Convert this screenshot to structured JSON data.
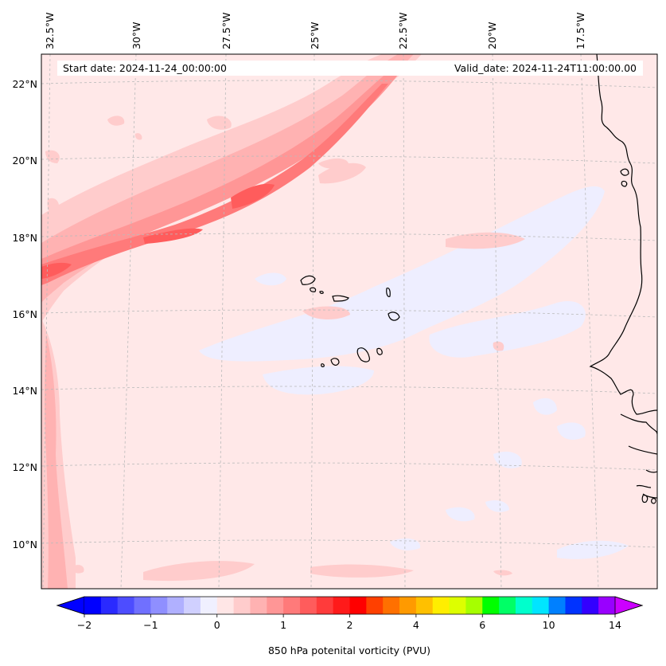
{
  "header": {
    "start_date": "Start date: 2024-11-24_00:00:00",
    "valid_date": "Valid_date: 2024-11-24T11:00:00.00"
  },
  "map": {
    "lon_labels": [
      "32.5°W",
      "30°W",
      "27.5°W",
      "25°W",
      "22.5°W",
      "20°W",
      "17.5°W"
    ],
    "lat_labels": [
      "22°N",
      "20°N",
      "18°N",
      "16°N",
      "14°N",
      "12°N",
      "10°N"
    ],
    "gridlines": "dashed"
  },
  "colorbar": {
    "label": "850 hPa potenital vorticity (PVU)",
    "tick_labels": [
      "−2",
      "−1",
      "0",
      "1",
      "2",
      "4",
      "6",
      "10",
      "14"
    ],
    "colors": [
      "#0000ff",
      "#2a2aff",
      "#4d4dff",
      "#7070ff",
      "#8f8fff",
      "#b0b0ff",
      "#d0d0ff",
      "#f0f0ff",
      "#ffe6e6",
      "#ffcccc",
      "#ffb2b2",
      "#ff9696",
      "#ff7a7a",
      "#ff5c5c",
      "#ff3b3b",
      "#ff1a1a",
      "#ff0000",
      "#ff4000",
      "#ff7000",
      "#ff9a00",
      "#ffc000",
      "#ffee00",
      "#ddff00",
      "#a6ff00",
      "#00ff00",
      "#00ff66",
      "#00ffcc",
      "#00e5ff",
      "#0080ff",
      "#0033ff",
      "#3300ff",
      "#9900ff"
    ],
    "extend_min_color": "#0000ff",
    "extend_max_color": "#cc00ff"
  }
}
